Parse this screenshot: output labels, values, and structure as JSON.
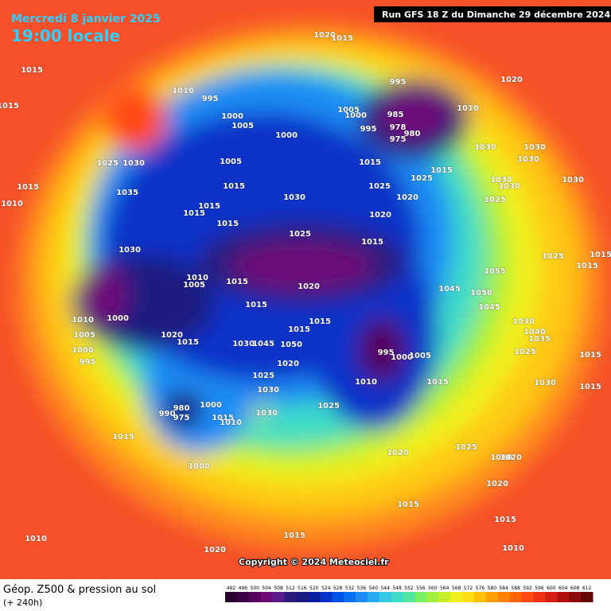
{
  "header": {
    "date": "Mercredi 8 janvier 2025",
    "time": "19:00 locale",
    "run": "Run GFS 18 Z du Dimanche 29 décembre 2024"
  },
  "copyright": "Copyright © 2024 Meteociel.fr",
  "legend": {
    "title": "Géop. Z500 & pression au sol",
    "lead": "(+ 240h)",
    "ticks": [
      492,
      496,
      500,
      504,
      508,
      512,
      516,
      520,
      524,
      528,
      532,
      536,
      540,
      544,
      548,
      552,
      556,
      560,
      564,
      568,
      572,
      576,
      580,
      584,
      588,
      592,
      596,
      600,
      604,
      608,
      612
    ],
    "colors": [
      "#2a0030",
      "#3c0046",
      "#55005f",
      "#6e0a7a",
      "#5a1a8c",
      "#2b1a7a",
      "#1a1a80",
      "#0a1ea0",
      "#0a32c8",
      "#0050e6",
      "#0a6ef0",
      "#1e8cf5",
      "#28aaf0",
      "#32c8e6",
      "#3cdcc8",
      "#50e6a0",
      "#78f064",
      "#a0f03c",
      "#c8f028",
      "#f0f01e",
      "#ffdc14",
      "#ffc00a",
      "#ffa000",
      "#ff8200",
      "#ff6400",
      "#ff4a14",
      "#f03214",
      "#d21e14",
      "#b40f0f",
      "#8c0a0a",
      "#640505"
    ]
  },
  "isobar_labels": [
    "1015",
    "1015",
    "1010",
    "995",
    "1000",
    "1005",
    "1000",
    "1005",
    "1025",
    "1030",
    "1015",
    "1010",
    "1035",
    "1015",
    "1015",
    "1015",
    "1015",
    "1030",
    "1025",
    "1030",
    "1010",
    "1005",
    "1015",
    "1015",
    "1020",
    "1010",
    "1000",
    "1005",
    "1000",
    "995",
    "1020",
    "1015",
    "1030",
    "1045",
    "1050",
    "1025",
    "1020",
    "1030",
    "1030",
    "1015",
    "1015",
    "995",
    "1000",
    "1005",
    "1010",
    "1015",
    "1025",
    "980",
    "990",
    "975",
    "1000",
    "1015",
    "1010",
    "1015",
    "1000",
    "1020",
    "1025",
    "1010",
    "1020",
    "1020",
    "1015",
    "1015",
    "1015",
    "1010",
    "1020",
    "1010",
    "995",
    "1020",
    "1010",
    "1005",
    "1000",
    "985",
    "995",
    "978",
    "980",
    "975",
    "1015",
    "1025",
    "1025",
    "1015",
    "1020",
    "1020",
    "1015",
    "1030",
    "1030",
    "1030",
    "1030",
    "1030",
    "1030",
    "1025",
    "1025",
    "1055",
    "1045",
    "1050",
    "1045",
    "1030",
    "1040",
    "1035",
    "1015",
    "1025",
    "1030",
    "1015",
    "1015",
    "1015",
    "1020",
    "1015"
  ]
}
